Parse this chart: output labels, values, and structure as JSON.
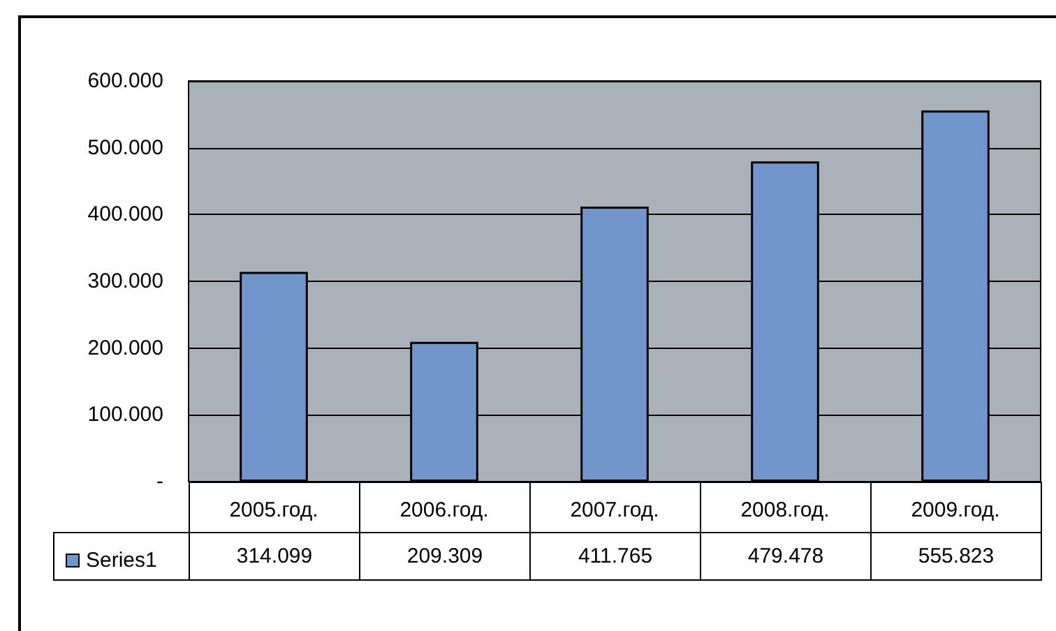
{
  "chart_data": {
    "type": "bar",
    "categories": [
      "2005.год.",
      "2006.год.",
      "2007.год.",
      "2008.год.",
      "2009.год."
    ],
    "series": [
      {
        "name": "Series1",
        "color": "#7096cc",
        "values": [
          314099,
          209309,
          411765,
          479478,
          555823
        ],
        "value_labels": [
          "314.099",
          "209.309",
          "411.765",
          "479.478",
          "555.823"
        ]
      }
    ],
    "ylim": [
      0,
      600000
    ],
    "yticks": [
      {
        "value": 0,
        "label": "-"
      },
      {
        "value": 100000,
        "label": "100.000"
      },
      {
        "value": 200000,
        "label": "200.000"
      },
      {
        "value": 300000,
        "label": "300.000"
      },
      {
        "value": 400000,
        "label": "400.000"
      },
      {
        "value": 500000,
        "label": "500.000"
      },
      {
        "value": 600000,
        "label": "600.000"
      }
    ],
    "grid": "y",
    "legend": "bottom left"
  }
}
